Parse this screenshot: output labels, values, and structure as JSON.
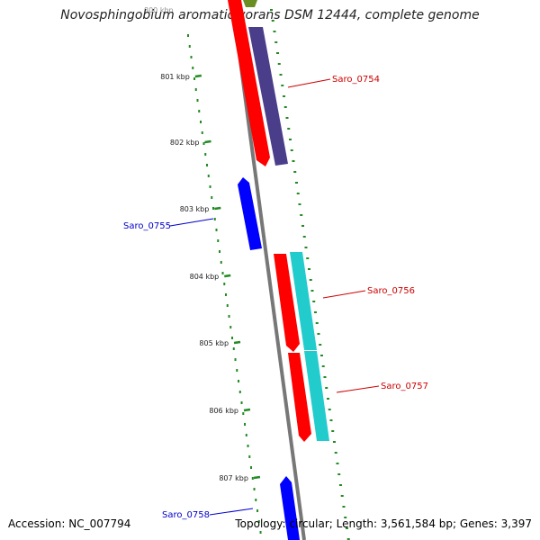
{
  "title": "Novosphingobium aromaticivorans DSM 12444, complete genome",
  "top_cut_label": "800 kbp",
  "ticks": [
    "801 kbp",
    "802 kbp",
    "803 kbp",
    "804 kbp",
    "805 kbp",
    "806 kbp",
    "807 kbp"
  ],
  "genes": [
    {
      "name": "Saro_0754",
      "color": "#cc0000"
    },
    {
      "name": "Saro_0755",
      "color": "#0000cc"
    },
    {
      "name": "Saro_0756",
      "color": "#cc0000"
    },
    {
      "name": "Saro_0757",
      "color": "#cc0000"
    },
    {
      "name": "Saro_0758",
      "color": "#0000cc"
    }
  ],
  "colors": {
    "backbone": "#777777",
    "forward_cds": "#ff0000",
    "reverse_cds": "#0000ff",
    "cog_purple": "#4a3d8a",
    "cog_cyan": "#22cccc",
    "cog_olive": "#6b8e23",
    "ruler": "#228b22"
  },
  "footer": {
    "accession": "Accession: NC_007794",
    "summary": "Topology: circular; Length: 3,561,584 bp; Genes: 3,397"
  }
}
